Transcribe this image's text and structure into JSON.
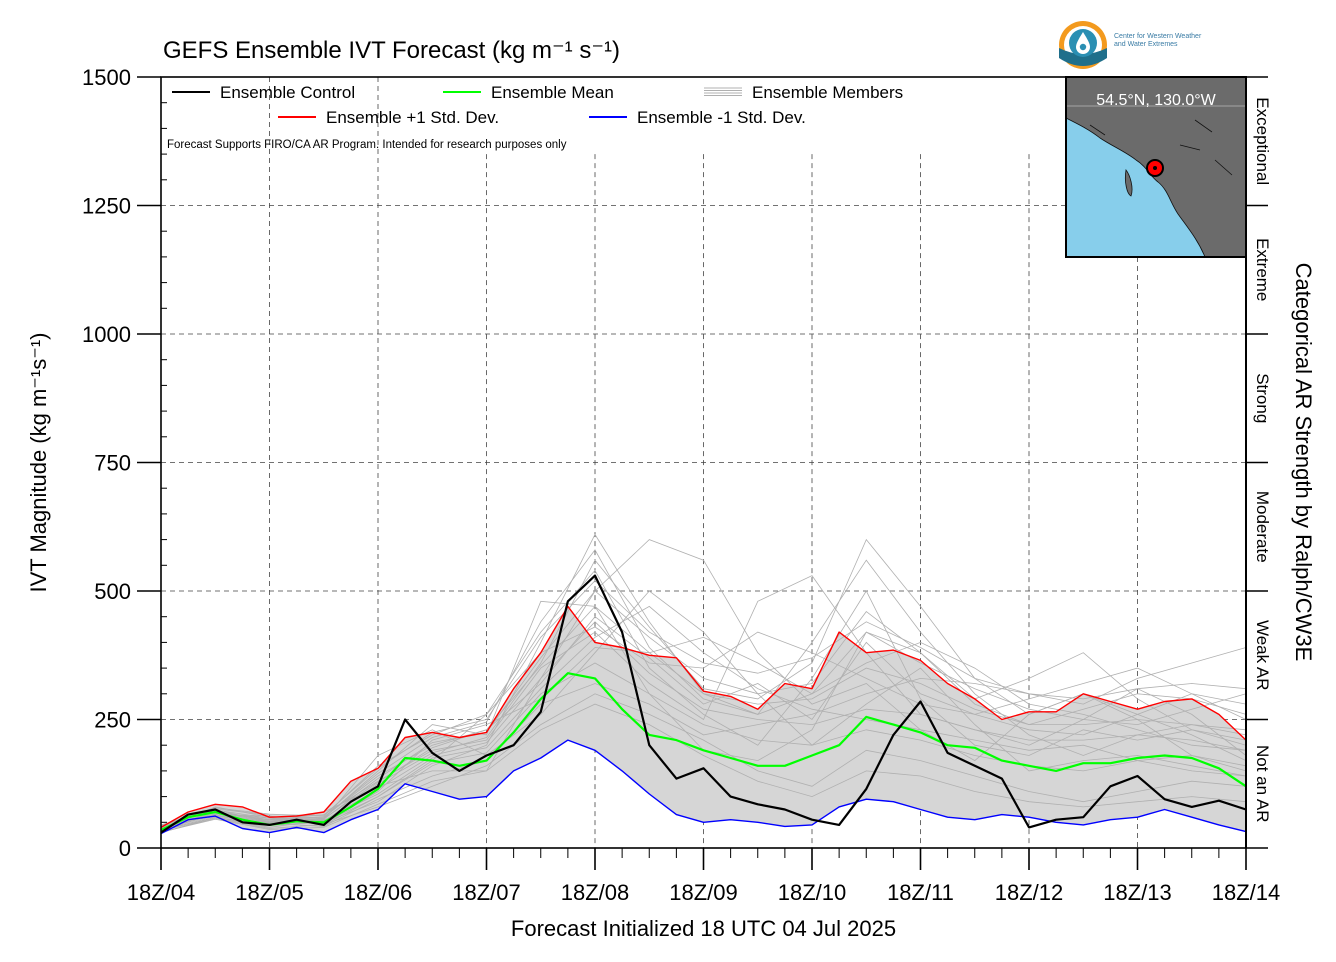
{
  "chart_data": {
    "type": "line",
    "title": "GEFS Ensemble IVT Forecast (kg m⁻¹ s⁻¹)",
    "xlabel": "Forecast Initialized 18 UTC 04 Jul 2025",
    "ylabel": "IVT Magnitude (kg m⁻¹s⁻¹)",
    "right_label": "Categorical AR Strength by Ralph/CW3E",
    "note": "Forecast Supports FIRO/CA AR Program. Intended for research purposes only",
    "inset_location": "54.5°N, 130.0°W",
    "ylim": [
      0,
      1500
    ],
    "y_ticks": [
      0,
      250,
      500,
      750,
      1000,
      1250,
      1500
    ],
    "x_ticks": [
      "18Z/04",
      "18Z/05",
      "18Z/06",
      "18Z/07",
      "18Z/08",
      "18Z/09",
      "18Z/10",
      "18Z/11",
      "18Z/12",
      "18Z/13",
      "18Z/14"
    ],
    "x_unit": "forecast days from initialization",
    "categories_right": [
      {
        "label": "Not an AR",
        "range": [
          0,
          250
        ]
      },
      {
        "label": "Weak AR",
        "range": [
          250,
          500
        ]
      },
      {
        "label": "Moderate",
        "range": [
          500,
          750
        ]
      },
      {
        "label": "Strong",
        "range": [
          750,
          1000
        ]
      },
      {
        "label": "Extreme",
        "range": [
          1000,
          1250
        ]
      },
      {
        "label": "Exceptional",
        "range": [
          1250,
          1500
        ]
      }
    ],
    "legend": {
      "placement": "top-left",
      "entries": [
        {
          "label": "Ensemble Control",
          "color": "#000000"
        },
        {
          "label": "Ensemble Mean",
          "color": "#00ff00"
        },
        {
          "label": "Ensemble Members",
          "color": "#b0b0b0"
        },
        {
          "label": "Ensemble +1 Std. Dev.",
          "color": "#ff0000"
        },
        {
          "label": "Ensemble -1 Std. Dev.",
          "color": "#0000ff"
        }
      ]
    },
    "series": [
      {
        "name": "Ensemble Control",
        "color": "#000000",
        "x": [
          0,
          0.25,
          0.5,
          0.75,
          1,
          1.25,
          1.5,
          1.75,
          2,
          2.25,
          2.5,
          2.75,
          3,
          3.25,
          3.5,
          3.75,
          4,
          4.25,
          4.5,
          4.75,
          5,
          5.25,
          5.5,
          5.75,
          6,
          6.25,
          6.5,
          6.75,
          7,
          7.25,
          7.5,
          7.75,
          8,
          8.25,
          8.5,
          8.75,
          9,
          9.25,
          9.5,
          9.75,
          10
        ],
        "values": [
          30,
          65,
          75,
          50,
          45,
          55,
          45,
          90,
          120,
          250,
          185,
          150,
          180,
          200,
          265,
          480,
          530,
          420,
          200,
          135,
          155,
          100,
          85,
          75,
          55,
          45,
          115,
          220,
          285,
          185,
          160,
          135,
          40,
          55,
          60,
          120,
          140,
          95,
          80,
          92,
          75
        ]
      },
      {
        "name": "Ensemble Mean",
        "color": "#00ff00",
        "x": [
          0,
          0.25,
          0.5,
          0.75,
          1,
          1.25,
          1.5,
          1.75,
          2,
          2.25,
          2.5,
          2.75,
          3,
          3.25,
          3.5,
          3.75,
          4,
          4.25,
          4.5,
          4.75,
          5,
          5.25,
          5.5,
          5.75,
          6,
          6.25,
          6.5,
          6.75,
          7,
          7.25,
          7.5,
          7.75,
          8,
          8.25,
          8.5,
          8.75,
          9,
          9.25,
          9.5,
          9.75,
          10
        ],
        "values": [
          35,
          60,
          70,
          55,
          45,
          52,
          50,
          80,
          115,
          175,
          170,
          160,
          170,
          225,
          290,
          340,
          330,
          270,
          220,
          210,
          190,
          175,
          160,
          160,
          180,
          200,
          255,
          240,
          225,
          200,
          195,
          170,
          160,
          150,
          165,
          165,
          175,
          180,
          175,
          155,
          120
        ]
      },
      {
        "name": "Ensemble +1 Std. Dev.",
        "color": "#ff0000",
        "x": [
          0,
          0.25,
          0.5,
          0.75,
          1,
          1.25,
          1.5,
          1.75,
          2,
          2.25,
          2.5,
          2.75,
          3,
          3.25,
          3.5,
          3.75,
          4,
          4.25,
          4.5,
          4.75,
          5,
          5.25,
          5.5,
          5.75,
          6,
          6.25,
          6.5,
          6.75,
          7,
          7.25,
          7.5,
          7.75,
          8,
          8.25,
          8.5,
          8.75,
          9,
          9.25,
          9.5,
          9.75,
          10
        ],
        "values": [
          40,
          70,
          85,
          80,
          60,
          62,
          70,
          130,
          155,
          215,
          225,
          215,
          225,
          310,
          380,
          470,
          400,
          390,
          375,
          370,
          305,
          295,
          270,
          320,
          310,
          420,
          380,
          385,
          365,
          320,
          290,
          250,
          265,
          265,
          300,
          285,
          270,
          285,
          290,
          260,
          210
        ]
      },
      {
        "name": "Ensemble -1 Std. Dev.",
        "color": "#0000ff",
        "x": [
          0,
          0.25,
          0.5,
          0.75,
          1,
          1.25,
          1.5,
          1.75,
          2,
          2.25,
          2.5,
          2.75,
          3,
          3.25,
          3.5,
          3.75,
          4,
          4.25,
          4.5,
          4.75,
          5,
          5.25,
          5.5,
          5.75,
          6,
          6.25,
          6.5,
          6.75,
          7,
          7.25,
          7.5,
          7.75,
          8,
          8.25,
          8.5,
          8.75,
          9,
          9.25,
          9.5,
          9.75,
          10
        ],
        "values": [
          28,
          55,
          62,
          38,
          30,
          40,
          30,
          55,
          75,
          125,
          110,
          95,
          100,
          150,
          175,
          210,
          190,
          150,
          105,
          65,
          50,
          55,
          50,
          42,
          45,
          80,
          95,
          90,
          75,
          60,
          55,
          65,
          60,
          50,
          45,
          55,
          60,
          75,
          60,
          45,
          32
        ]
      },
      {
        "name": "Ensemble Members",
        "color": "#b0b0b0",
        "x": [
          0,
          0.5,
          1,
          1.5,
          2,
          2.5,
          3,
          3.5,
          4,
          4.5,
          5,
          5.5,
          6,
          6.5,
          7,
          7.5,
          8,
          8.5,
          9,
          9.5,
          10
        ],
        "members": [
          [
            40,
            70,
            55,
            60,
            140,
            200,
            230,
            320,
            450,
            370,
            280,
            320,
            250,
            400,
            300,
            260,
            230,
            220,
            260,
            300,
            250
          ],
          [
            35,
            80,
            60,
            45,
            100,
            170,
            260,
            420,
            540,
            350,
            260,
            200,
            330,
            500,
            290,
            200,
            180,
            230,
            210,
            230,
            200
          ],
          [
            30,
            60,
            40,
            55,
            180,
            230,
            180,
            260,
            380,
            500,
            420,
            300,
            200,
            280,
            350,
            240,
            150,
            170,
            180,
            160,
            140
          ],
          [
            45,
            75,
            50,
            70,
            120,
            150,
            150,
            330,
            500,
            600,
            560,
            380,
            280,
            320,
            230,
            170,
            260,
            300,
            250,
            180,
            160
          ],
          [
            38,
            65,
            45,
            50,
            90,
            160,
            200,
            400,
            610,
            440,
            300,
            260,
            400,
            560,
            420,
            300,
            220,
            180,
            220,
            240,
            230
          ],
          [
            32,
            70,
            55,
            65,
            130,
            190,
            210,
            350,
            420,
            320,
            250,
            480,
            530,
            380,
            260,
            230,
            200,
            250,
            310,
            260,
            180
          ],
          [
            42,
            68,
            58,
            48,
            110,
            210,
            240,
            290,
            390,
            380,
            410,
            360,
            300,
            360,
            400,
            350,
            280,
            260,
            230,
            200,
            190
          ],
          [
            36,
            72,
            52,
            58,
            150,
            240,
            220,
            480,
            470,
            300,
            190,
            170,
            230,
            420,
            380,
            290,
            330,
            380,
            290,
            230,
            210
          ],
          [
            34,
            62,
            48,
            42,
            95,
            140,
            170,
            280,
            320,
            280,
            220,
            240,
            260,
            300,
            330,
            320,
            300,
            280,
            330,
            360,
            390
          ],
          [
            40,
            66,
            62,
            52,
            125,
            185,
            215,
            360,
            560,
            430,
            310,
            290,
            360,
            600,
            470,
            330,
            260,
            300,
            260,
            220,
            170
          ],
          [
            30,
            58,
            38,
            46,
            80,
            120,
            160,
            240,
            300,
            260,
            210,
            150,
            120,
            190,
            170,
            140,
            110,
            90,
            110,
            130,
            120
          ],
          [
            44,
            78,
            66,
            62,
            160,
            220,
            260,
            380,
            430,
            360,
            350,
            420,
            380,
            330,
            280,
            260,
            290,
            320,
            350,
            300,
            280
          ],
          [
            36,
            64,
            46,
            54,
            105,
            175,
            195,
            310,
            410,
            470,
            380,
            310,
            270,
            250,
            230,
            210,
            190,
            200,
            170,
            150,
            140
          ],
          [
            38,
            70,
            50,
            56,
            135,
            205,
            225,
            370,
            500,
            410,
            330,
            300,
            320,
            460,
            380,
            280,
            240,
            270,
            300,
            290,
            260
          ],
          [
            33,
            60,
            44,
            50,
            100,
            165,
            185,
            300,
            360,
            300,
            240,
            210,
            200,
            230,
            210,
            180,
            160,
            150,
            170,
            180,
            150
          ],
          [
            41,
            74,
            58,
            60,
            145,
            215,
            245,
            440,
            580,
            390,
            290,
            260,
            300,
            420,
            360,
            310,
            270,
            250,
            240,
            270,
            300
          ],
          [
            37,
            67,
            49,
            53,
            115,
            180,
            205,
            330,
            440,
            340,
            270,
            250,
            240,
            270,
            260,
            230,
            210,
            210,
            220,
            210,
            190
          ],
          [
            39,
            69,
            54,
            57,
            128,
            195,
            230,
            355,
            470,
            380,
            300,
            280,
            290,
            350,
            320,
            270,
            240,
            240,
            250,
            240,
            220
          ],
          [
            31,
            56,
            36,
            40,
            85,
            130,
            150,
            230,
            280,
            240,
            180,
            130,
            100,
            150,
            140,
            110,
            90,
            80,
            90,
            100,
            90
          ],
          [
            43,
            76,
            64,
            64,
            155,
            225,
            250,
            410,
            520,
            420,
            360,
            340,
            370,
            440,
            390,
            330,
            300,
            290,
            310,
            320,
            310
          ]
        ]
      }
    ]
  }
}
